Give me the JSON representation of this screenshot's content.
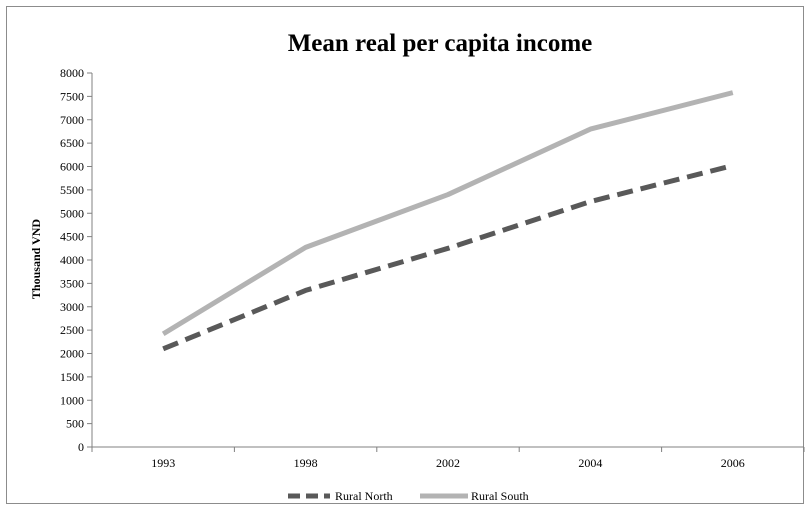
{
  "chart_data": {
    "type": "line",
    "title": "Mean real per capita income",
    "xlabel": "",
    "ylabel": "Thousand  VND",
    "categories": [
      "1993",
      "1998",
      "2002",
      "2004",
      "2006"
    ],
    "ylim": [
      0,
      8000
    ],
    "yticks": [
      0,
      500,
      1000,
      1500,
      2000,
      2500,
      3000,
      3500,
      4000,
      4500,
      5000,
      5500,
      6000,
      6500,
      7000,
      7500,
      8000
    ],
    "grid": false,
    "legend_position": "bottom",
    "series": [
      {
        "name": "Rural North",
        "values": [
          2100,
          3350,
          4250,
          5250,
          6020
        ],
        "color": "#595959",
        "style": "dashed"
      },
      {
        "name": "Rural South",
        "values": [
          2420,
          4270,
          5400,
          6800,
          7580
        ],
        "color": "#b3b3b3",
        "style": "solid"
      }
    ]
  }
}
